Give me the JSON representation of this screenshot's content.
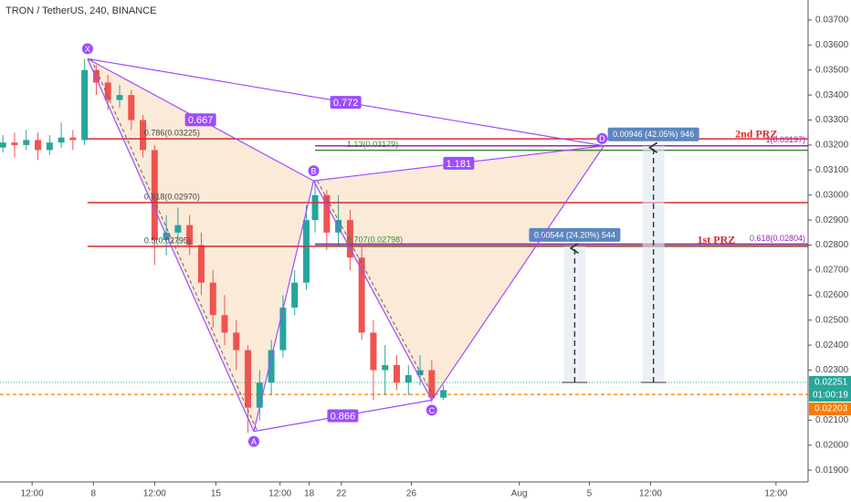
{
  "chart_data": {
    "type": "candlestick",
    "title": "TRON / TetherUS, 240, BINANCE",
    "up_color": "#26a69a",
    "down_color": "#ef5350",
    "x": [
      1,
      5,
      9,
      13,
      17,
      21,
      25,
      29,
      33,
      37,
      41,
      45,
      49,
      53,
      57,
      61,
      65,
      69,
      73,
      77,
      81,
      85,
      89,
      93,
      97,
      101,
      105,
      108,
      112,
      116,
      120,
      124,
      128,
      132,
      136,
      140,
      144,
      148,
      152
    ],
    "open": [
      0.0319,
      0.0321,
      0.032,
      0.0322,
      0.0318,
      0.0321,
      0.0323,
      0.0322,
      0.035,
      0.0345,
      0.0338,
      0.034,
      0.033,
      0.0318,
      0.0282,
      0.0285,
      0.0288,
      0.028,
      0.0265,
      0.0252,
      0.0245,
      0.0238,
      0.0215,
      0.0225,
      0.0238,
      0.0255,
      0.0265,
      0.029,
      0.03,
      0.0285,
      0.029,
      0.0275,
      0.0245,
      0.023,
      0.0232,
      0.0225,
      0.0228,
      0.023,
      0.0219
    ],
    "high": [
      0.0324,
      0.0325,
      0.0326,
      0.0325,
      0.0324,
      0.0329,
      0.0326,
      0.03545,
      0.0352,
      0.0348,
      0.0344,
      0.0342,
      0.0332,
      0.032,
      0.0292,
      0.0295,
      0.0292,
      0.0285,
      0.027,
      0.026,
      0.025,
      0.024,
      0.023,
      0.0242,
      0.026,
      0.027,
      0.0296,
      0.03055,
      0.0302,
      0.03,
      0.0294,
      0.028,
      0.025,
      0.024,
      0.0236,
      0.0232,
      0.0236,
      0.0234,
      0.0224
    ],
    "low": [
      0.0317,
      0.0315,
      0.0318,
      0.0314,
      0.0316,
      0.0319,
      0.0318,
      0.032,
      0.034,
      0.0334,
      0.0335,
      0.0326,
      0.0315,
      0.0272,
      0.0276,
      0.028,
      0.0276,
      0.026,
      0.0247,
      0.024,
      0.023,
      0.0205,
      0.021,
      0.022,
      0.0235,
      0.0252,
      0.0262,
      0.0285,
      0.0278,
      0.028,
      0.027,
      0.0242,
      0.0218,
      0.022,
      0.0222,
      0.022,
      0.0224,
      0.0217,
      0.0218
    ],
    "close": [
      0.0321,
      0.032,
      0.0322,
      0.0318,
      0.0321,
      0.0323,
      0.0322,
      0.035,
      0.0345,
      0.0338,
      0.034,
      0.033,
      0.0318,
      0.0282,
      0.0285,
      0.0288,
      0.028,
      0.0265,
      0.0252,
      0.0245,
      0.0238,
      0.0215,
      0.0225,
      0.0238,
      0.0255,
      0.0265,
      0.029,
      0.03,
      0.0285,
      0.029,
      0.0275,
      0.0245,
      0.023,
      0.0232,
      0.0225,
      0.0228,
      0.023,
      0.0219,
      0.0222
    ],
    "xlim": [
      0,
      277
    ],
    "xticks": [
      {
        "value": 11,
        "label": "12:00"
      },
      {
        "value": 32,
        "label": "8"
      },
      {
        "value": 53,
        "label": "12:00"
      },
      {
        "value": 74,
        "label": "15"
      },
      {
        "value": 96,
        "label": "12:00"
      },
      {
        "value": 106,
        "label": "18"
      },
      {
        "value": 117,
        "label": "22"
      },
      {
        "value": 141,
        "label": "26"
      },
      {
        "value": 178,
        "label": "Aug"
      },
      {
        "value": 202,
        "label": "5"
      },
      {
        "value": 223,
        "label": "12:00"
      },
      {
        "value": 266,
        "label": "12:00"
      }
    ],
    "ylim": [
      0.01853,
      0.0378
    ],
    "yticks": [
      {
        "value": 0.037,
        "label": "0.03700"
      },
      {
        "value": 0.036,
        "label": "0.03600"
      },
      {
        "value": 0.035,
        "label": "0.03500"
      },
      {
        "value": 0.034,
        "label": "0.03400"
      },
      {
        "value": 0.033,
        "label": "0.03300"
      },
      {
        "value": 0.032,
        "label": "0.03200"
      },
      {
        "value": 0.031,
        "label": "0.03100"
      },
      {
        "value": 0.03,
        "label": "0.03000"
      },
      {
        "value": 0.029,
        "label": "0.02900"
      },
      {
        "value": 0.028,
        "label": "0.02800"
      },
      {
        "value": 0.027,
        "label": "0.02700"
      },
      {
        "value": 0.026,
        "label": "0.02600"
      },
      {
        "value": 0.025,
        "label": "0.02500"
      },
      {
        "value": 0.024,
        "label": "0.02400"
      },
      {
        "value": 0.023,
        "label": "0.02300"
      },
      {
        "value": 0.021,
        "label": "0.02100"
      },
      {
        "value": 0.02,
        "label": "0.02000"
      },
      {
        "value": 0.019,
        "label": "0.01900"
      }
    ],
    "pattern": {
      "color": "#9c4dff",
      "fill": "#fbe3cc",
      "points": [
        {
          "label": "X",
          "x": 30,
          "y": 0.03545
        },
        {
          "label": "A",
          "x": 87,
          "y": 0.02055
        },
        {
          "label": "B",
          "x": 107.5,
          "y": 0.03057
        },
        {
          "label": "C",
          "x": 148,
          "y": 0.0218
        },
        {
          "label": "D",
          "x": 207,
          "y": 0.03197
        }
      ],
      "ratios": [
        "0.667",
        "0.772",
        "1.181",
        "0.866"
      ]
    },
    "fib_levels": [
      {
        "label": "0.786(0.03225)",
        "value": 0.03225,
        "from": 30,
        "color": "#e0282e"
      },
      {
        "label": "0.618(0.02970)",
        "value": 0.0297,
        "from": 30,
        "color": "#e0282e"
      },
      {
        "label": "0.5(0.02795)",
        "value": 0.02795,
        "from": 30,
        "color": "#e0282e"
      },
      {
        "label": "1.13(0.03179)",
        "value": 0.03179,
        "from": 108,
        "color": "#3d8b37"
      },
      {
        "label": "0.707(0.02798)",
        "value": 0.02798,
        "from": 108,
        "color": "#3d8b37"
      }
    ],
    "prz_levels": [
      {
        "label": "1(0.03197)",
        "value": 0.03197,
        "from": 108,
        "color": "#9c27b0"
      },
      {
        "label": "0.618(0.02804)",
        "value": 0.02804,
        "from": 108,
        "color": "#9c27b0"
      }
    ],
    "zones": [
      {
        "label": "2nd PRZ",
        "x": 252,
        "y": 0.0324
      },
      {
        "label": "1st PRZ",
        "x": 239,
        "y": 0.02818
      }
    ],
    "measures": [
      {
        "label": "0.00946 (42.05%) 946",
        "x": 224,
        "from": 0.02251,
        "to": 0.03197
      },
      {
        "label": "0.00544 (24.20%) 544",
        "x": 197,
        "from": 0.02251,
        "to": 0.02795
      }
    ],
    "last_price": {
      "value": 0.02251,
      "label": "0.02251",
      "countdown": "01:00:19",
      "color": "#26a69a"
    },
    "ref_price": {
      "value": 0.02203,
      "label": "0.02203",
      "color": "#f57c00"
    }
  }
}
